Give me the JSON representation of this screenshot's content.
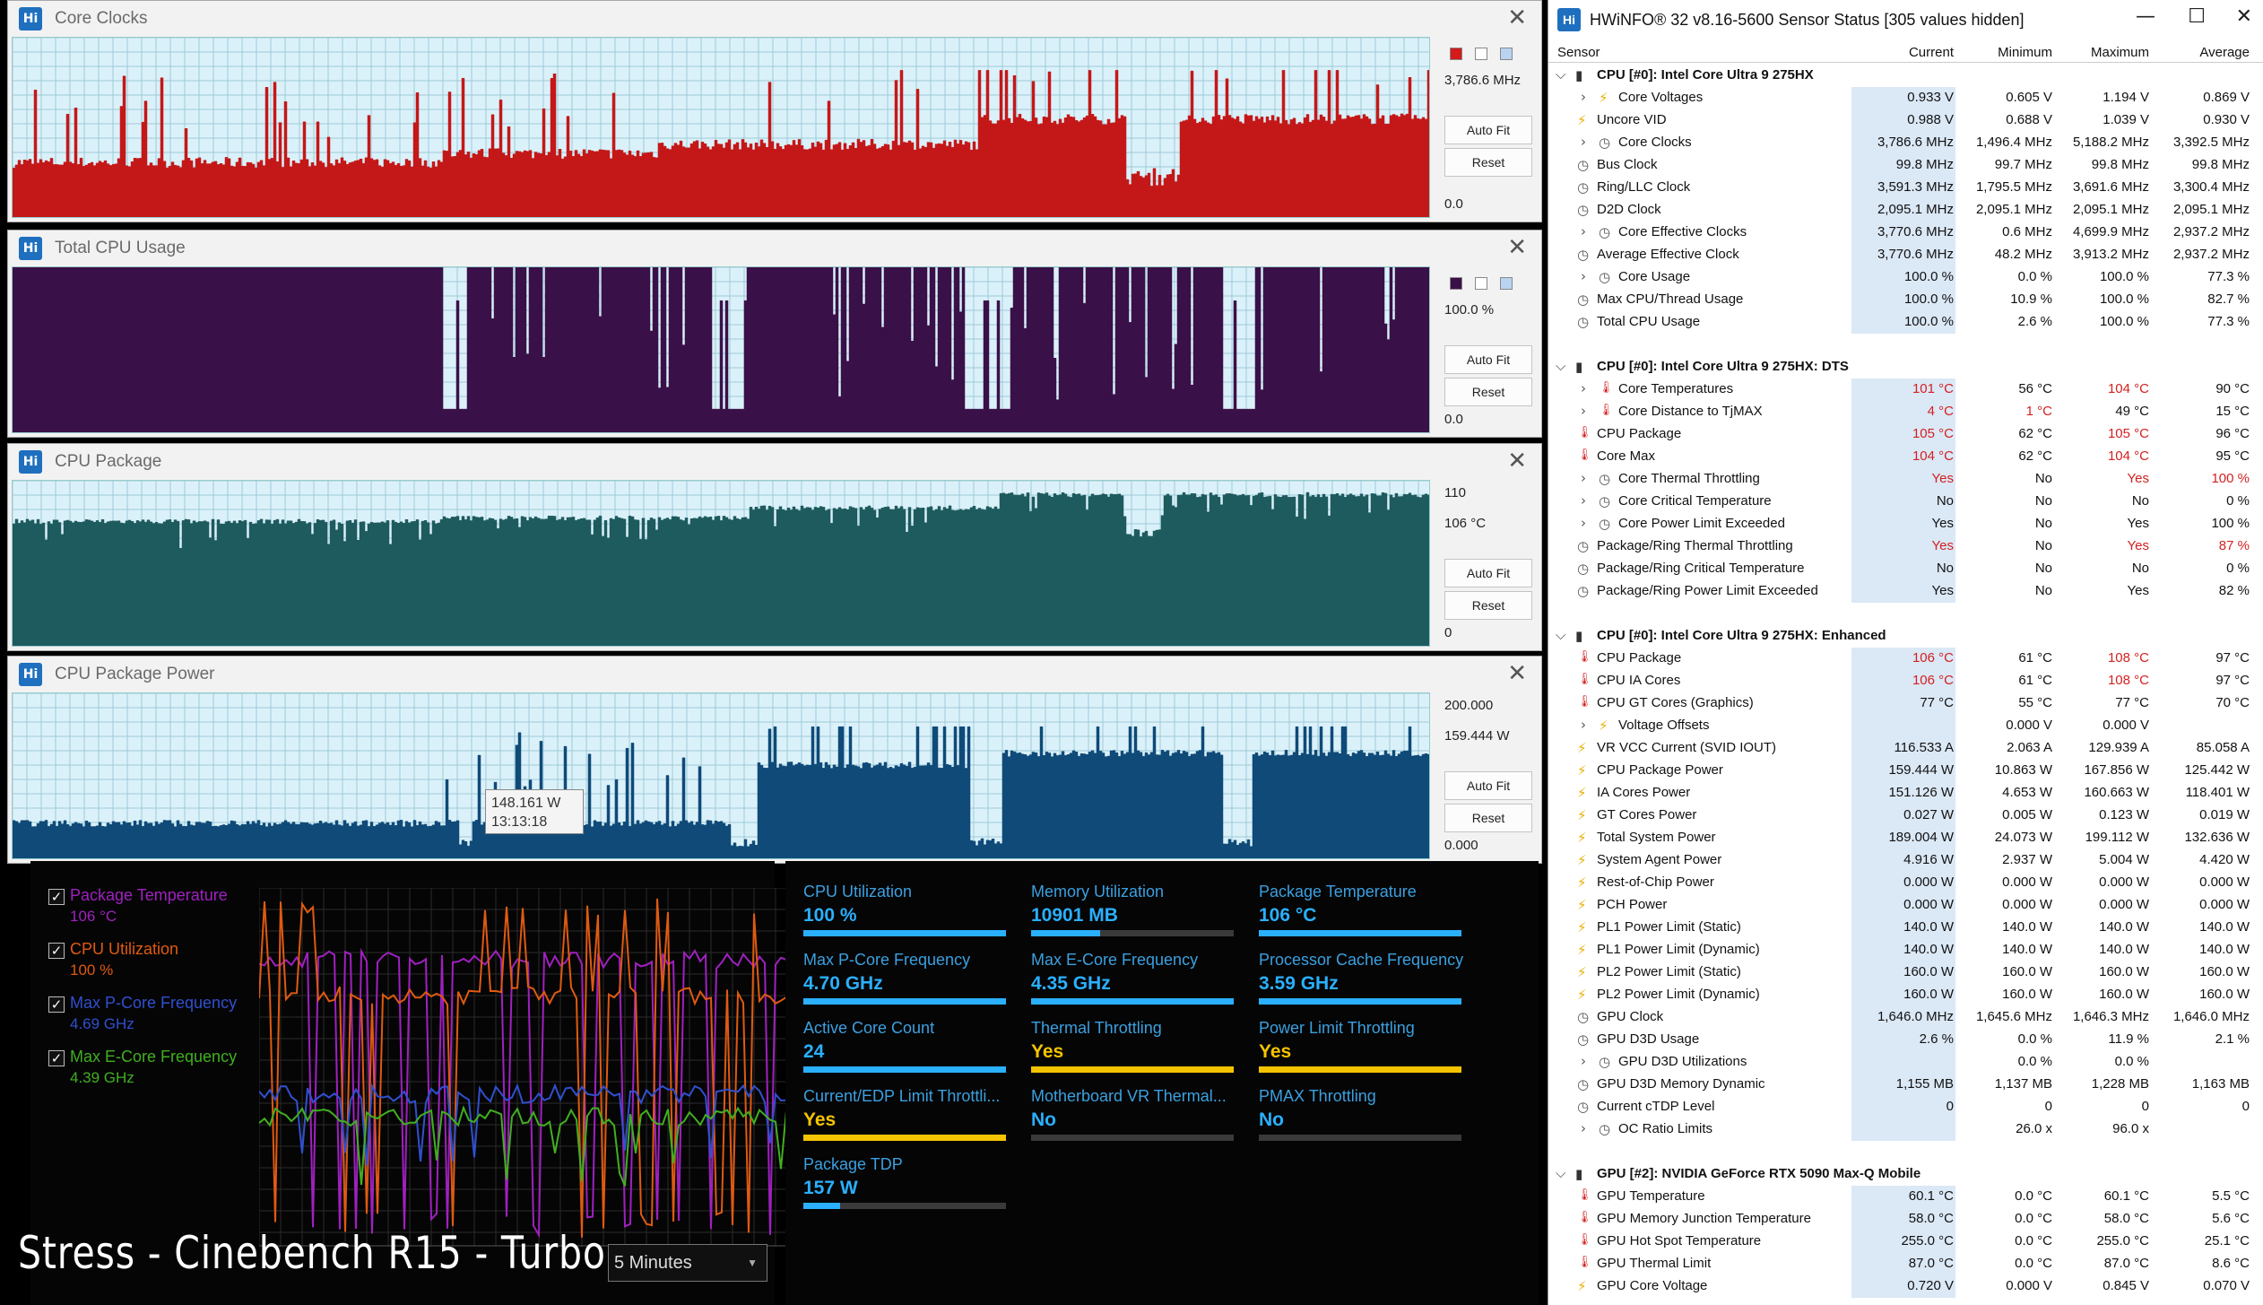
{
  "graphs": [
    {
      "title": "Core Clocks",
      "value": "3,786.6 MHz",
      "max_label": "",
      "min_label": "0.0",
      "autofit": "Auto Fit",
      "reset": "Reset",
      "fill": "#c41818",
      "bg": "#dbf1fa",
      "swatch": "#d41a1a"
    },
    {
      "title": "Total CPU Usage",
      "value": "100.0 %",
      "max_label": "",
      "min_label": "0.0",
      "autofit": "Auto Fit",
      "reset": "Reset",
      "fill": "#3a1048",
      "bg": "#dbf1fa",
      "swatch": "#3a1048"
    },
    {
      "title": "CPU Package",
      "value": "106 °C",
      "max_label": "110",
      "min_label": "0",
      "autofit": "Auto Fit",
      "reset": "Reset",
      "fill": "#1e5b5e",
      "bg": "#dbf1fa",
      "swatch": ""
    },
    {
      "title": "CPU Package Power",
      "value": "159.444 W",
      "max_label": "200.000",
      "min_label": "0.000",
      "autofit": "Auto Fit",
      "reset": "Reset",
      "fill": "#0f4a78",
      "bg": "#dbf1fa",
      "swatch": "",
      "tooltip_value": "148.161 W",
      "tooltip_time": "13:13:18"
    }
  ],
  "left_panel": {
    "legend": [
      {
        "name": "Package Temperature",
        "value": "106 °C",
        "color": "#a020c0"
      },
      {
        "name": "CPU Utilization",
        "value": "100 %",
        "color": "#e05a10"
      },
      {
        "name": "Max P-Core Frequency",
        "value": "4.69 GHz",
        "color": "#3050d0"
      },
      {
        "name": "Max E-Core Frequency",
        "value": "4.39 GHz",
        "color": "#40b020"
      }
    ],
    "check": "✓",
    "overlay_title": "Stress - Cinebench R15 - Turbo",
    "timerange": "5 Minutes"
  },
  "tiles": [
    {
      "label": "CPU Utilization",
      "value": "100 %",
      "color": "#2ab0ff",
      "fill": 1.0
    },
    {
      "label": "Memory Utilization",
      "value": "10901 MB",
      "color": "#2ab0ff",
      "fill": 0.34
    },
    {
      "label": "Package Temperature",
      "value": "106 °C",
      "color": "#2ab0ff",
      "fill": 1.0
    },
    {
      "label": "Max P-Core Frequency",
      "value": "4.70 GHz",
      "color": "#2ab0ff",
      "fill": 1.0
    },
    {
      "label": "Max E-Core Frequency",
      "value": "4.35 GHz",
      "color": "#2ab0ff",
      "fill": 1.0
    },
    {
      "label": "Processor Cache Frequency",
      "value": "3.59 GHz",
      "color": "#2ab0ff",
      "fill": 1.0
    },
    {
      "label": "Active Core Count",
      "value": "24",
      "color": "#2ab0ff",
      "fill": 1.0
    },
    {
      "label": "Thermal Throttling",
      "value": "Yes",
      "color": "#f5c400",
      "fill": 1.0
    },
    {
      "label": "Power Limit Throttling",
      "value": "Yes",
      "color": "#f5c400",
      "fill": 1.0
    },
    {
      "label": "Current/EDP Limit Throttli...",
      "value": "Yes",
      "color": "#f5c400",
      "fill": 1.0
    },
    {
      "label": "Motherboard VR Thermal...",
      "value": "No",
      "color": "#2ab0ff",
      "fill": 0.0
    },
    {
      "label": "PMAX Throttling",
      "value": "No",
      "color": "#2ab0ff",
      "fill": 0.0
    },
    {
      "label": "Package TDP",
      "value": "157 W",
      "color": "#2ab0ff",
      "fill": 0.18
    }
  ],
  "hwinfo": {
    "title": "HWiNFO® 32 v8.16-5600 Sensor Status [305 values hidden]",
    "columns": [
      "Sensor",
      "Current",
      "Minimum",
      "Maximum",
      "Average"
    ],
    "rows": [
      {
        "type": "group",
        "name": "CPU [#0]: Intel Core Ultra 9 275HX"
      },
      {
        "icon": "bolt",
        "exp": true,
        "name": "Core Voltages",
        "cur": "0.933 V",
        "min": "0.605 V",
        "max": "1.194 V",
        "avg": "0.869 V"
      },
      {
        "icon": "bolt",
        "name": "Uncore VID",
        "cur": "0.988 V",
        "min": "0.688 V",
        "max": "1.039 V",
        "avg": "0.930 V"
      },
      {
        "icon": "clock",
        "exp": true,
        "name": "Core Clocks",
        "cur": "3,786.6 MHz",
        "min": "1,496.4 MHz",
        "max": "5,188.2 MHz",
        "avg": "3,392.5 MHz"
      },
      {
        "icon": "clock",
        "name": "Bus Clock",
        "cur": "99.8 MHz",
        "min": "99.7 MHz",
        "max": "99.8 MHz",
        "avg": "99.8 MHz"
      },
      {
        "icon": "clock",
        "name": "Ring/LLC Clock",
        "cur": "3,591.3 MHz",
        "min": "1,795.5 MHz",
        "max": "3,691.6 MHz",
        "avg": "3,300.4 MHz"
      },
      {
        "icon": "clock",
        "name": "D2D Clock",
        "cur": "2,095.1 MHz",
        "min": "2,095.1 MHz",
        "max": "2,095.1 MHz",
        "avg": "2,095.1 MHz"
      },
      {
        "icon": "clock",
        "exp": true,
        "name": "Core Effective Clocks",
        "cur": "3,770.6 MHz",
        "min": "0.6 MHz",
        "max": "4,699.9 MHz",
        "avg": "2,937.2 MHz"
      },
      {
        "icon": "clock",
        "name": "Average Effective Clock",
        "cur": "3,770.6 MHz",
        "min": "48.2 MHz",
        "max": "3,913.2 MHz",
        "avg": "2,937.2 MHz"
      },
      {
        "icon": "clock",
        "exp": true,
        "name": "Core Usage",
        "cur": "100.0 %",
        "min": "0.0 %",
        "max": "100.0 %",
        "avg": "77.3 %"
      },
      {
        "icon": "clock",
        "name": "Max CPU/Thread Usage",
        "cur": "100.0 %",
        "min": "10.9 %",
        "max": "100.0 %",
        "avg": "82.7 %"
      },
      {
        "icon": "clock",
        "name": "Total CPU Usage",
        "cur": "100.0 %",
        "min": "2.6 %",
        "max": "100.0 %",
        "avg": "77.3 %"
      },
      {
        "type": "gap"
      },
      {
        "type": "group",
        "name": "CPU [#0]: Intel Core Ultra 9 275HX: DTS"
      },
      {
        "icon": "therm",
        "exp": true,
        "name": "Core Temperatures",
        "cur": "101 °C",
        "min": "56 °C",
        "max": "104 °C",
        "avg": "90 °C",
        "red": [
          "cur",
          "max"
        ]
      },
      {
        "icon": "therm",
        "exp": true,
        "name": "Core Distance to TjMAX",
        "cur": "4 °C",
        "min": "1 °C",
        "max": "49 °C",
        "avg": "15 °C",
        "red": [
          "cur",
          "min"
        ]
      },
      {
        "icon": "therm",
        "name": "CPU Package",
        "cur": "105 °C",
        "min": "62 °C",
        "max": "105 °C",
        "avg": "96 °C",
        "red": [
          "cur",
          "max"
        ]
      },
      {
        "icon": "therm",
        "name": "Core Max",
        "cur": "104 °C",
        "min": "62 °C",
        "max": "104 °C",
        "avg": "95 °C",
        "red": [
          "cur",
          "max"
        ]
      },
      {
        "icon": "clock",
        "exp": true,
        "name": "Core Thermal Throttling",
        "cur": "Yes",
        "min": "No",
        "max": "Yes",
        "avg": "100 %",
        "red": [
          "cur",
          "max",
          "avg"
        ]
      },
      {
        "icon": "clock",
        "exp": true,
        "name": "Core Critical Temperature",
        "cur": "No",
        "min": "No",
        "max": "No",
        "avg": "0 %"
      },
      {
        "icon": "clock",
        "exp": true,
        "name": "Core Power Limit Exceeded",
        "cur": "Yes",
        "min": "No",
        "max": "Yes",
        "avg": "100 %"
      },
      {
        "icon": "clock",
        "name": "Package/Ring Thermal Throttling",
        "cur": "Yes",
        "min": "No",
        "max": "Yes",
        "avg": "87 %",
        "red": [
          "cur",
          "max",
          "avg"
        ]
      },
      {
        "icon": "clock",
        "name": "Package/Ring Critical Temperature",
        "cur": "No",
        "min": "No",
        "max": "No",
        "avg": "0 %"
      },
      {
        "icon": "clock",
        "name": "Package/Ring Power Limit Exceeded",
        "cur": "Yes",
        "min": "No",
        "max": "Yes",
        "avg": "82 %"
      },
      {
        "type": "gap"
      },
      {
        "type": "group",
        "name": "CPU [#0]: Intel Core Ultra 9 275HX: Enhanced"
      },
      {
        "icon": "therm",
        "name": "CPU Package",
        "cur": "106 °C",
        "min": "61 °C",
        "max": "108 °C",
        "avg": "97 °C",
        "red": [
          "cur",
          "max"
        ]
      },
      {
        "icon": "therm",
        "name": "CPU IA Cores",
        "cur": "106 °C",
        "min": "61 °C",
        "max": "108 °C",
        "avg": "97 °C",
        "red": [
          "cur",
          "max"
        ]
      },
      {
        "icon": "therm",
        "name": "CPU GT Cores (Graphics)",
        "cur": "77 °C",
        "min": "55 °C",
        "max": "77 °C",
        "avg": "70 °C"
      },
      {
        "icon": "bolt",
        "exp": true,
        "name": "Voltage Offsets",
        "cur": "",
        "min": "0.000 V",
        "max": "0.000 V",
        "avg": ""
      },
      {
        "icon": "bolt",
        "name": "VR VCC Current (SVID IOUT)",
        "cur": "116.533 A",
        "min": "2.063 A",
        "max": "129.939 A",
        "avg": "85.058 A"
      },
      {
        "icon": "bolt",
        "name": "CPU Package Power",
        "cur": "159.444 W",
        "min": "10.863 W",
        "max": "167.856 W",
        "avg": "125.442 W"
      },
      {
        "icon": "bolt",
        "name": "IA Cores Power",
        "cur": "151.126 W",
        "min": "4.653 W",
        "max": "160.663 W",
        "avg": "118.401 W"
      },
      {
        "icon": "bolt",
        "name": "GT Cores Power",
        "cur": "0.027 W",
        "min": "0.005 W",
        "max": "0.123 W",
        "avg": "0.019 W"
      },
      {
        "icon": "bolt",
        "name": "Total System Power",
        "cur": "189.004 W",
        "min": "24.073 W",
        "max": "199.112 W",
        "avg": "132.636 W"
      },
      {
        "icon": "bolt",
        "name": "System Agent Power",
        "cur": "4.916 W",
        "min": "2.937 W",
        "max": "5.004 W",
        "avg": "4.420 W"
      },
      {
        "icon": "bolt",
        "name": "Rest-of-Chip Power",
        "cur": "0.000 W",
        "min": "0.000 W",
        "max": "0.000 W",
        "avg": "0.000 W"
      },
      {
        "icon": "bolt",
        "name": "PCH Power",
        "cur": "0.000 W",
        "min": "0.000 W",
        "max": "0.000 W",
        "avg": "0.000 W"
      },
      {
        "icon": "bolt",
        "name": "PL1 Power Limit (Static)",
        "cur": "140.0 W",
        "min": "140.0 W",
        "max": "140.0 W",
        "avg": "140.0 W"
      },
      {
        "icon": "bolt",
        "name": "PL1 Power Limit (Dynamic)",
        "cur": "140.0 W",
        "min": "140.0 W",
        "max": "140.0 W",
        "avg": "140.0 W"
      },
      {
        "icon": "bolt",
        "name": "PL2 Power Limit (Static)",
        "cur": "160.0 W",
        "min": "160.0 W",
        "max": "160.0 W",
        "avg": "160.0 W"
      },
      {
        "icon": "bolt",
        "name": "PL2 Power Limit (Dynamic)",
        "cur": "160.0 W",
        "min": "160.0 W",
        "max": "160.0 W",
        "avg": "160.0 W"
      },
      {
        "icon": "clock",
        "name": "GPU Clock",
        "cur": "1,646.0 MHz",
        "min": "1,645.6 MHz",
        "max": "1,646.3 MHz",
        "avg": "1,646.0 MHz"
      },
      {
        "icon": "clock",
        "name": "GPU D3D Usage",
        "cur": "2.6 %",
        "min": "0.0 %",
        "max": "11.9 %",
        "avg": "2.1 %"
      },
      {
        "icon": "clock",
        "exp": true,
        "name": "GPU D3D Utilizations",
        "cur": "",
        "min": "0.0 %",
        "max": "0.0 %",
        "avg": ""
      },
      {
        "icon": "clock",
        "name": "GPU D3D Memory Dynamic",
        "cur": "1,155 MB",
        "min": "1,137 MB",
        "max": "1,228 MB",
        "avg": "1,163 MB"
      },
      {
        "icon": "clock",
        "name": "Current cTDP Level",
        "cur": "0",
        "min": "0",
        "max": "0",
        "avg": "0"
      },
      {
        "icon": "clock",
        "exp": true,
        "name": "OC Ratio Limits",
        "cur": "",
        "min": "26.0 x",
        "max": "96.0 x",
        "avg": ""
      },
      {
        "type": "gap"
      },
      {
        "type": "group",
        "name": "GPU [#2]: NVIDIA  GeForce RTX 5090 Max-Q Mobile"
      },
      {
        "icon": "therm",
        "name": "GPU Temperature",
        "cur": "60.1 °C",
        "min": "0.0 °C",
        "max": "60.1 °C",
        "avg": "5.5 °C"
      },
      {
        "icon": "therm",
        "name": "GPU Memory Junction Temperature",
        "cur": "58.0 °C",
        "min": "0.0 °C",
        "max": "58.0 °C",
        "avg": "5.6 °C"
      },
      {
        "icon": "therm",
        "name": "GPU Hot Spot Temperature",
        "cur": "255.0 °C",
        "min": "0.0 °C",
        "max": "255.0 °C",
        "avg": "25.1 °C"
      },
      {
        "icon": "therm",
        "name": "GPU Thermal Limit",
        "cur": "87.0 °C",
        "min": "0.0 °C",
        "max": "87.0 °C",
        "avg": "8.6 °C"
      },
      {
        "icon": "bolt",
        "name": "GPU Core Voltage",
        "cur": "0.720 V",
        "min": "0.000 V",
        "max": "0.845 V",
        "avg": "0.070 V"
      }
    ]
  }
}
